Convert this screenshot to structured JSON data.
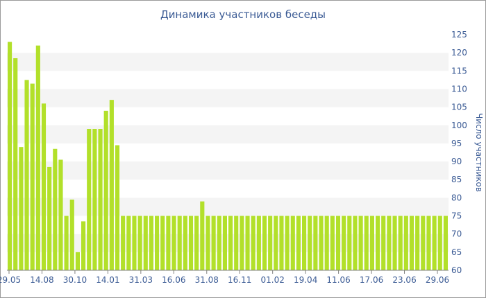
{
  "chart_data": {
    "type": "bar",
    "title": "Динамика участников беседы",
    "ylabel": "Число участников",
    "xlabel": "",
    "ylim": [
      60,
      125
    ],
    "yticks": [
      60,
      65,
      70,
      75,
      80,
      85,
      90,
      95,
      100,
      105,
      110,
      115,
      120,
      125
    ],
    "x_tick_labels": [
      "29.05",
      "14.08",
      "30.10",
      "14.01",
      "31.03",
      "16.06",
      "31.08",
      "16.11",
      "01.02",
      "19.04",
      "11.06",
      "17.06",
      "23.06",
      "29.06"
    ],
    "grid": "alternating horizontal bands",
    "color": "#b2e02a",
    "series": [
      {
        "values": [
          123,
          118.5,
          94,
          112.5,
          111.5,
          122,
          106,
          88.5,
          93.5,
          90.5,
          75,
          79.5,
          65,
          73.5,
          99,
          99,
          99,
          104,
          107,
          94.5,
          75,
          75,
          75,
          75,
          75,
          75,
          75,
          75,
          75,
          75,
          75,
          75,
          75,
          75,
          79,
          75,
          75,
          75,
          75,
          75,
          75,
          75,
          75,
          75,
          75,
          75,
          75,
          75,
          75,
          75,
          75,
          75,
          75,
          75,
          75,
          75,
          75,
          75,
          75,
          75,
          75,
          75,
          75,
          75,
          75,
          75,
          75,
          75,
          75,
          75,
          75,
          75,
          75,
          75,
          75,
          75,
          75,
          75
        ]
      }
    ]
  }
}
